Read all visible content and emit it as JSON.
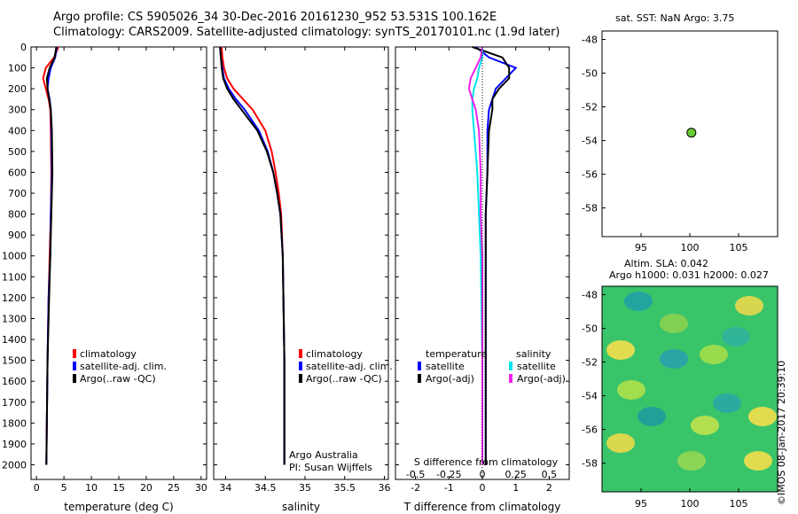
{
  "header": {
    "line1": "Argo profile: CS 5905026_34 30-Dec-2016 20161230_952 53.531S 100.162E",
    "line2": "Climatology: CARS2009. Satellite-adjusted climatology: synTS_20170101.nc (1.9d later)"
  },
  "colors": {
    "climatology": "#ff0000",
    "satellite": "#0000ff",
    "argo": "#000000",
    "satellite_s": "#00e5ee",
    "argo_adj_s": "#ee22ee"
  },
  "chart_data": [
    {
      "type": "line",
      "name": "temperature",
      "xlabel": "temperature (deg C)",
      "ylabel": "",
      "xlim": [
        -1,
        31
      ],
      "ylim": [
        2070,
        0
      ],
      "y_reversed": true,
      "x_ticks": [
        0,
        5,
        10,
        15,
        20,
        25,
        30
      ],
      "y_ticks": [
        0,
        100,
        200,
        300,
        400,
        500,
        600,
        700,
        800,
        900,
        1000,
        1100,
        1200,
        1300,
        1400,
        1500,
        1600,
        1700,
        1800,
        1900,
        2000
      ],
      "legend": [
        "climatology",
        "satellite-adj. clim.",
        "Argo(..raw -QC)"
      ],
      "series": [
        {
          "name": "climatology",
          "y": [
            0,
            50,
            100,
            150,
            200,
            250,
            300,
            400,
            600,
            800,
            1000,
            1200,
            1500,
            2000
          ],
          "values": [
            4.0,
            3.2,
            1.7,
            1.2,
            1.7,
            2.2,
            2.5,
            2.6,
            2.7,
            2.6,
            2.4,
            2.2,
            2.0,
            1.8
          ]
        },
        {
          "name": "satellite-adj. clim.",
          "y": [
            0,
            50,
            100,
            150,
            200,
            250,
            300,
            400,
            600,
            800,
            1000,
            1200,
            1500,
            2000
          ],
          "values": [
            3.7,
            3.4,
            2.6,
            2.2,
            2.0,
            2.4,
            2.6,
            2.7,
            2.8,
            2.6,
            2.5,
            2.2,
            2.0,
            1.8
          ]
        },
        {
          "name": "Argo(..raw -QC)",
          "y": [
            0,
            50,
            100,
            150,
            200,
            250,
            300,
            400,
            600,
            800,
            1000,
            1200,
            1500,
            2000
          ],
          "values": [
            3.6,
            3.3,
            2.4,
            1.9,
            2.0,
            2.3,
            2.6,
            2.8,
            2.9,
            2.7,
            2.5,
            2.3,
            2.0,
            1.8
          ]
        }
      ]
    },
    {
      "type": "line",
      "name": "salinity",
      "xlabel": "salinity",
      "ylabel": "",
      "xlim": [
        33.85,
        36.05
      ],
      "ylim": [
        2070,
        0
      ],
      "y_reversed": true,
      "x_ticks": [
        34,
        34.5,
        35,
        35.5,
        36
      ],
      "legend": [
        "climatology",
        "satellite-adj. clim.",
        "Argo(..raw -QC)"
      ],
      "annotation": [
        "Argo Australia",
        "PI: Susan Wijffels"
      ],
      "series": [
        {
          "name": "climatology",
          "y": [
            0,
            50,
            100,
            150,
            200,
            250,
            300,
            400,
            500,
            600,
            700,
            800,
            1000,
            1500,
            2000
          ],
          "values": [
            33.95,
            33.96,
            33.98,
            34.02,
            34.1,
            34.22,
            34.34,
            34.5,
            34.58,
            34.63,
            34.67,
            34.7,
            34.72,
            34.74,
            34.74
          ]
        },
        {
          "name": "satellite-adj. clim.",
          "y": [
            0,
            50,
            100,
            150,
            200,
            250,
            300,
            400,
            500,
            600,
            700,
            800,
            1000,
            1500,
            2000
          ],
          "values": [
            33.93,
            33.94,
            33.96,
            33.98,
            34.04,
            34.13,
            34.24,
            34.42,
            34.53,
            34.6,
            34.65,
            34.69,
            34.72,
            34.74,
            34.74
          ]
        },
        {
          "name": "Argo(..raw -QC)",
          "y": [
            0,
            50,
            100,
            150,
            200,
            250,
            300,
            400,
            500,
            600,
            700,
            800,
            1000,
            1500,
            2000
          ],
          "values": [
            33.93,
            33.94,
            33.95,
            33.97,
            34.02,
            34.1,
            34.2,
            34.4,
            34.52,
            34.6,
            34.65,
            34.69,
            34.72,
            34.74,
            34.74
          ]
        }
      ]
    },
    {
      "type": "line",
      "name": "differences",
      "xlabel": "T difference from climatology",
      "xlabel2": "S difference from climatology",
      "xlim": [
        -2.6,
        2.6
      ],
      "ylim": [
        2070,
        0
      ],
      "y_reversed": true,
      "x_ticks": [
        -2,
        -1,
        0,
        1,
        2
      ],
      "x_ticks_2_labels": [
        "-0.5",
        "-0.25",
        "0",
        "0.25",
        "0.5"
      ],
      "legend_headers": [
        "temperature",
        "salinity"
      ],
      "legend": [
        "satellite",
        "Argo(-adj)",
        "satellite",
        "Argo(-adj)"
      ],
      "series": [
        {
          "name": "temperature satellite",
          "y": [
            0,
            50,
            100,
            150,
            200,
            250,
            300,
            400,
            600,
            800,
            1000,
            1500,
            2000
          ],
          "values": [
            -0.2,
            0.2,
            1.0,
            0.7,
            0.4,
            0.3,
            0.2,
            0.15,
            0.15,
            0.1,
            0.1,
            0.1,
            0.1
          ]
        },
        {
          "name": "temperature Argo(-adj)",
          "y": [
            0,
            50,
            100,
            150,
            200,
            250,
            300,
            400,
            600,
            800,
            1000,
            1500,
            2000
          ],
          "values": [
            -0.3,
            0.6,
            0.8,
            0.8,
            0.5,
            0.3,
            0.3,
            0.2,
            0.15,
            0.1,
            0.1,
            0.1,
            0.1
          ]
        },
        {
          "name": "salinity satellite",
          "y": [
            0,
            50,
            100,
            150,
            200,
            250,
            300,
            400,
            600,
            800,
            1000,
            1500,
            2000
          ],
          "values": [
            0.0,
            0.0,
            -0.1,
            -0.15,
            -0.25,
            -0.3,
            -0.3,
            -0.25,
            -0.15,
            -0.1,
            -0.05,
            0.0,
            0.0
          ]
        },
        {
          "name": "salinity Argo(-adj)",
          "y": [
            0,
            50,
            100,
            150,
            200,
            250,
            300,
            400,
            600,
            800,
            1000,
            1500,
            2000
          ],
          "values": [
            0.0,
            -0.05,
            -0.2,
            -0.35,
            -0.4,
            -0.3,
            -0.2,
            -0.1,
            -0.05,
            -0.05,
            0.0,
            0.0,
            0.0
          ]
        }
      ]
    },
    {
      "type": "scatter",
      "name": "location",
      "title": "sat. SST: NaN Argo: 3.75",
      "xlim": [
        91,
        109
      ],
      "ylim": [
        -59.7,
        -47.5
      ],
      "x_ticks": [
        95,
        100,
        105
      ],
      "y_ticks": [
        -48,
        -50,
        -52,
        -54,
        -56,
        -58
      ],
      "points": [
        {
          "x": 100.162,
          "y": -53.531,
          "color": "#66cc33"
        }
      ]
    },
    {
      "type": "heatmap",
      "name": "altimetry",
      "title": [
        "Altim. SLA: 0.042",
        "Argo h1000: 0.031 h2000: 0.027"
      ],
      "xlim": [
        91,
        109
      ],
      "ylim": [
        -59.7,
        -47.5
      ],
      "x_ticks": [
        95,
        100,
        105
      ],
      "y_ticks": [
        -48,
        -50,
        -52,
        -54,
        -56,
        -58
      ],
      "stamp": "©IMOS 08-Jan-2017 20:39:10"
    }
  ]
}
